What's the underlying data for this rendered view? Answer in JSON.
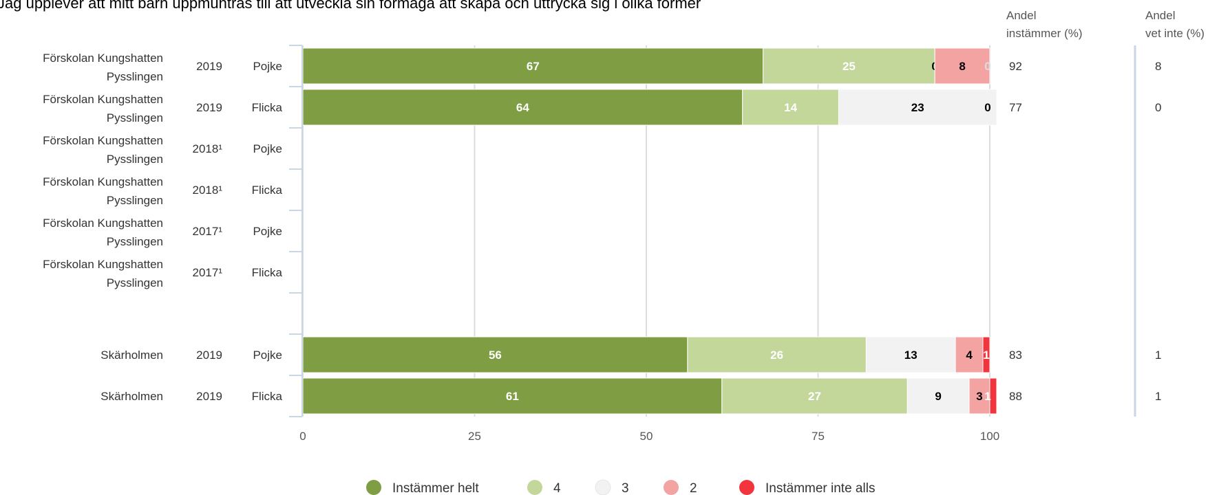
{
  "chart_data": {
    "type": "bar",
    "orientation": "horizontal",
    "stacked": true,
    "title": "Jag upplever att mitt barn uppmuntras till att utveckla sin förmåga att skapa och uttrycka sig i olika former",
    "xlim": [
      0,
      100
    ],
    "xticks": [
      "0",
      "25",
      "50",
      "75",
      "100"
    ],
    "grid": true,
    "legend_position": "bottom",
    "column_headers": {
      "agree": [
        "Andel",
        "instämmer (%)"
      ],
      "unknown": [
        "Andel",
        "vet inte (%)"
      ]
    },
    "legend": [
      {
        "name": "Instämmer helt",
        "color": "#7f9d43"
      },
      {
        "name": "4",
        "color": "#c4d79b"
      },
      {
        "name": "3",
        "color": "#f2f2f2"
      },
      {
        "name": "2",
        "color": "#f4a3a3"
      },
      {
        "name": "Instämmer inte alls",
        "color": "#f2353c"
      }
    ],
    "rows": [
      {
        "unit": [
          "Förskolan Kungshatten",
          "Pysslingen"
        ],
        "year": "2019",
        "gender": "Pojke",
        "values": [
          67,
          25,
          0,
          8,
          0
        ],
        "labels": [
          "67",
          "25",
          "0",
          "8",
          "0"
        ],
        "agree": "92",
        "unknown": "8"
      },
      {
        "unit": [
          "Förskolan Kungshatten",
          "Pysslingen"
        ],
        "year": "2019",
        "gender": "Flicka",
        "values": [
          64,
          14,
          23,
          0,
          0
        ],
        "labels": [
          "64",
          "14",
          "23",
          "0",
          ""
        ],
        "agree": "77",
        "unknown": "0"
      },
      {
        "unit": [
          "Förskolan Kungshatten",
          "Pysslingen"
        ],
        "year": "2018¹",
        "gender": "Pojke",
        "values": [],
        "labels": [],
        "agree": "",
        "unknown": ""
      },
      {
        "unit": [
          "Förskolan Kungshatten",
          "Pysslingen"
        ],
        "year": "2018¹",
        "gender": "Flicka",
        "values": [],
        "labels": [],
        "agree": "",
        "unknown": ""
      },
      {
        "unit": [
          "Förskolan Kungshatten",
          "Pysslingen"
        ],
        "year": "2017¹",
        "gender": "Pojke",
        "values": [],
        "labels": [],
        "agree": "",
        "unknown": ""
      },
      {
        "unit": [
          "Förskolan Kungshatten",
          "Pysslingen"
        ],
        "year": "2017¹",
        "gender": "Flicka",
        "values": [],
        "labels": [],
        "agree": "",
        "unknown": ""
      },
      {
        "unit": [],
        "year": "",
        "gender": "",
        "values": [],
        "labels": [],
        "agree": "",
        "unknown": ""
      },
      {
        "unit": [
          "Skärholmen"
        ],
        "year": "2019",
        "gender": "Pojke",
        "values": [
          56,
          26,
          13,
          4,
          1
        ],
        "labels": [
          "56",
          "26",
          "13",
          "4",
          "1"
        ],
        "agree": "83",
        "unknown": "1"
      },
      {
        "unit": [
          "Skärholmen"
        ],
        "year": "2019",
        "gender": "Flicka",
        "values": [
          61,
          27,
          9,
          3,
          1
        ],
        "labels": [
          "61",
          "27",
          "9",
          "3",
          "1"
        ],
        "agree": "88",
        "unknown": "1"
      }
    ]
  }
}
